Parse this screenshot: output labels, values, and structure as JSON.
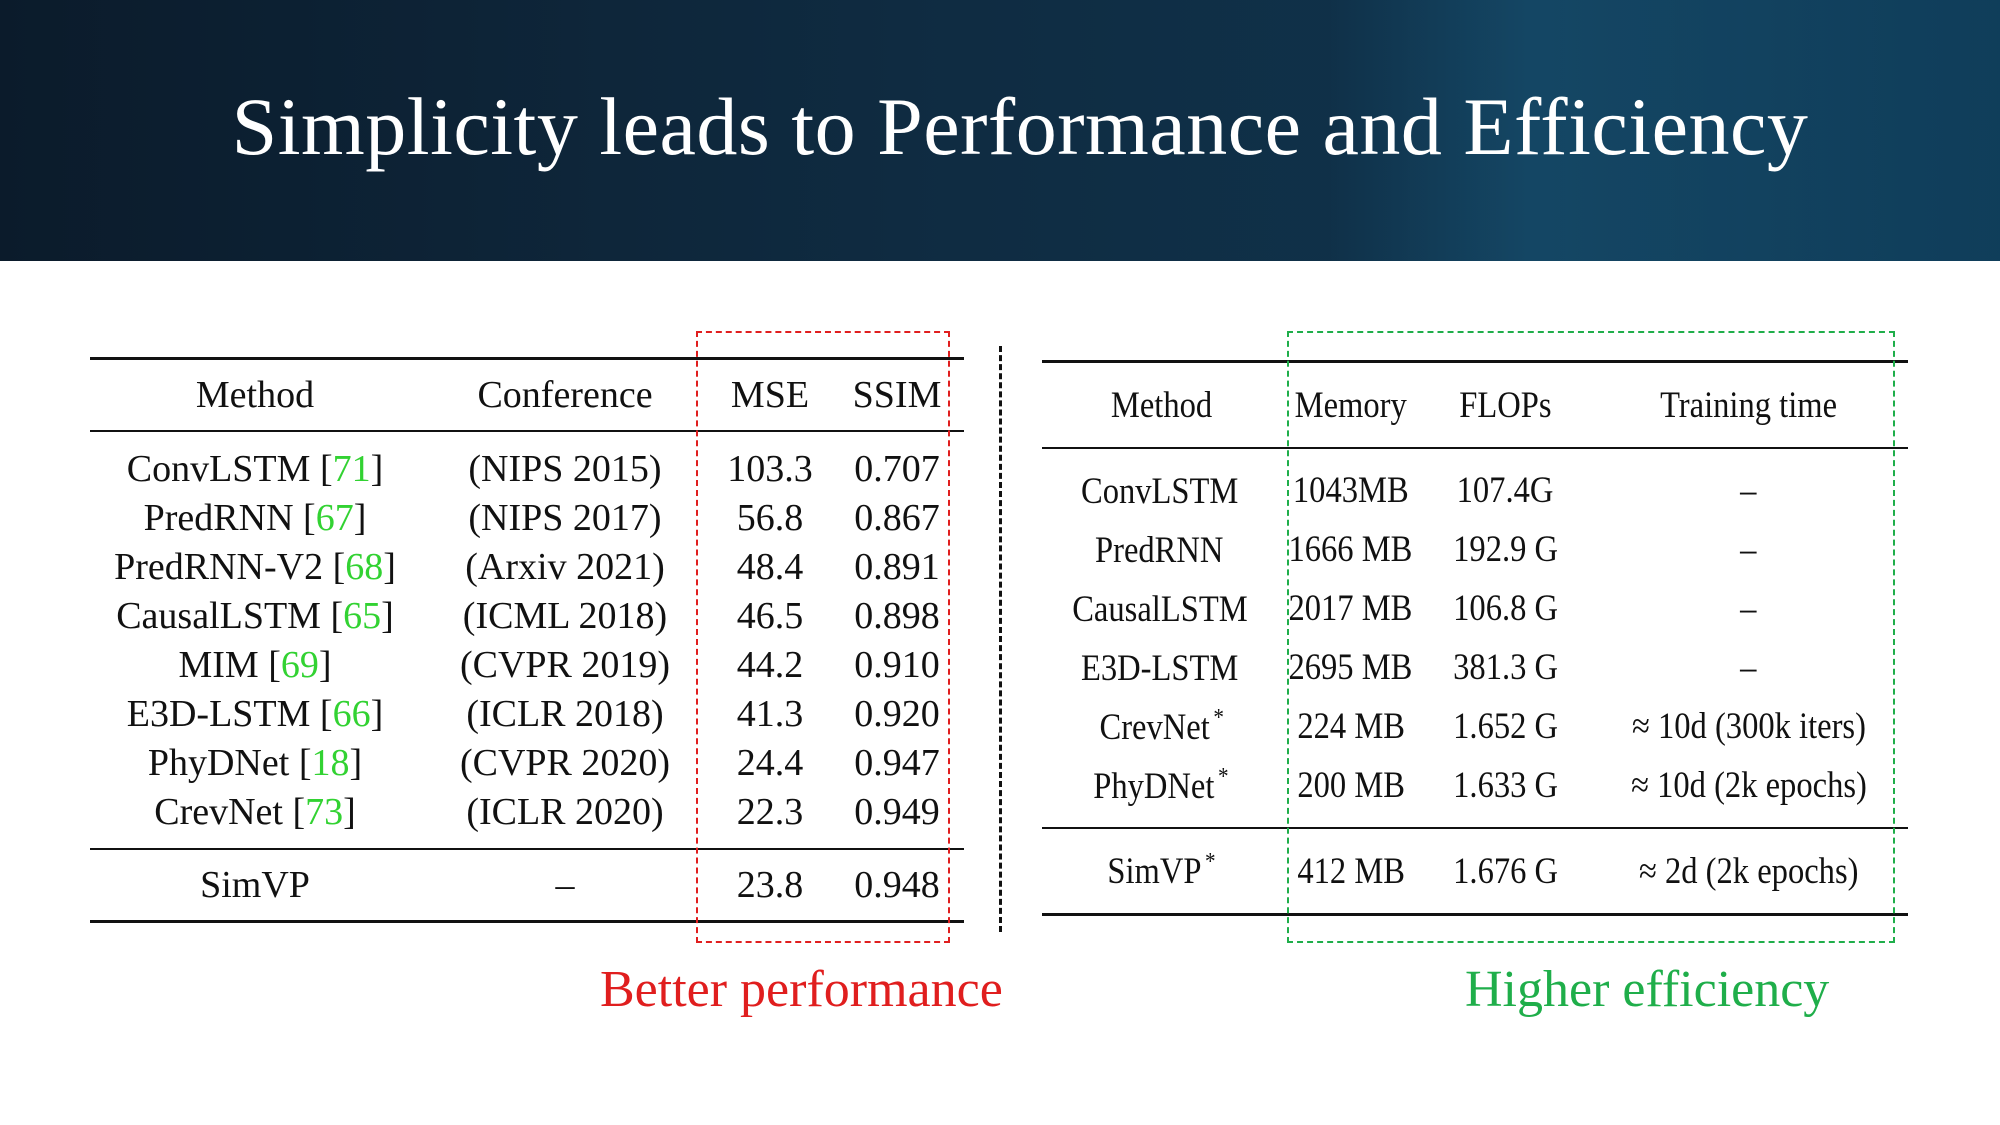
{
  "slide": {
    "title": "Simplicity leads to Performance and Efficiency"
  },
  "performance_table": {
    "headers": [
      "Method",
      "Conference",
      "MSE",
      "SSIM"
    ],
    "rows": [
      {
        "method": "ConvLSTM",
        "ref": "71",
        "conference": "(NIPS 2015)",
        "mse": "103.3",
        "ssim": "0.707"
      },
      {
        "method": "PredRNN",
        "ref": "67",
        "conference": "(NIPS 2017)",
        "mse": "56.8",
        "ssim": "0.867"
      },
      {
        "method": "PredRNN-V2",
        "ref": "68",
        "conference": "(Arxiv 2021)",
        "mse": "48.4",
        "ssim": "0.891"
      },
      {
        "method": "CausalLSTM",
        "ref": "65",
        "conference": "(ICML 2018)",
        "mse": "46.5",
        "ssim": "0.898"
      },
      {
        "method": "MIM",
        "ref": "69",
        "conference": "(CVPR 2019)",
        "mse": "44.2",
        "ssim": "0.910"
      },
      {
        "method": "E3D-LSTM",
        "ref": "66",
        "conference": "(ICLR 2018)",
        "mse": "41.3",
        "ssim": "0.920"
      },
      {
        "method": "PhyDNet",
        "ref": "18",
        "conference": "(CVPR 2020)",
        "mse": "24.4",
        "ssim": "0.947"
      },
      {
        "method": "CrevNet",
        "ref": "73",
        "conference": "(ICLR 2020)",
        "mse": "22.3",
        "ssim": "0.949"
      }
    ],
    "final": {
      "method": "SimVP",
      "conference": "–",
      "mse": "23.8",
      "ssim": "0.948"
    },
    "caption": "Better performance"
  },
  "efficiency_table": {
    "headers": [
      "Method",
      "Memory",
      "FLOPs",
      "Training time"
    ],
    "rows": [
      {
        "method": "ConvLSTM",
        "star": "",
        "memory": "1043MB",
        "flops": "107.4G",
        "time": "–"
      },
      {
        "method": "PredRNN",
        "star": "",
        "memory": "1666 MB",
        "flops": "192.9 G",
        "time": "–"
      },
      {
        "method": "CausalLSTM",
        "star": "",
        "memory": "2017 MB",
        "flops": "106.8 G",
        "time": "–"
      },
      {
        "method": "E3D-LSTM",
        "star": "",
        "memory": "2695 MB",
        "flops": "381.3 G",
        "time": "–"
      },
      {
        "method": "CrevNet",
        "star": "*",
        "memory": "224 MB",
        "flops": "1.652 G",
        "time": "≈ 10d (300k iters)"
      },
      {
        "method": "PhyDNet",
        "star": "*",
        "memory": "200 MB",
        "flops": "1.633 G",
        "time": "≈ 10d (2k epochs)"
      }
    ],
    "final": {
      "method": "SimVP",
      "star": "*",
      "memory": "412 MB",
      "flops": "1.676 G",
      "time": "≈ 2d (2k epochs)"
    },
    "caption": "Higher efficiency"
  },
  "colors": {
    "banner": "#0f2b41",
    "reference": "#32d232",
    "performance_box": "#e01e1e",
    "efficiency_box": "#1fae4a"
  }
}
